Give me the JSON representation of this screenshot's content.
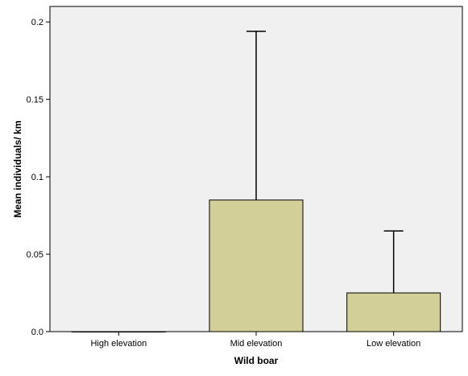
{
  "chart_data": {
    "type": "bar",
    "categories": [
      "High elevation",
      "Mid elevation",
      "Low elevation"
    ],
    "values": [
      0.0,
      0.085,
      0.025
    ],
    "error_upper": [
      0.0,
      0.194,
      0.065
    ],
    "xlabel": "Wild boar",
    "ylabel": "Mean individuals/ km",
    "ylim": [
      0,
      0.21
    ],
    "yticks": [
      0,
      0.05,
      0.1,
      0.15,
      0.2
    ],
    "ytick_labels": [
      "0.0",
      "0.05",
      "0.1",
      "0.15",
      "0.2"
    ],
    "grid": false,
    "legend": "none",
    "colors": {
      "plot_background": "#f0f0f0",
      "bar_fill": "#d3cf98",
      "bar_stroke": "#000000",
      "error_bar": "#000000"
    }
  }
}
